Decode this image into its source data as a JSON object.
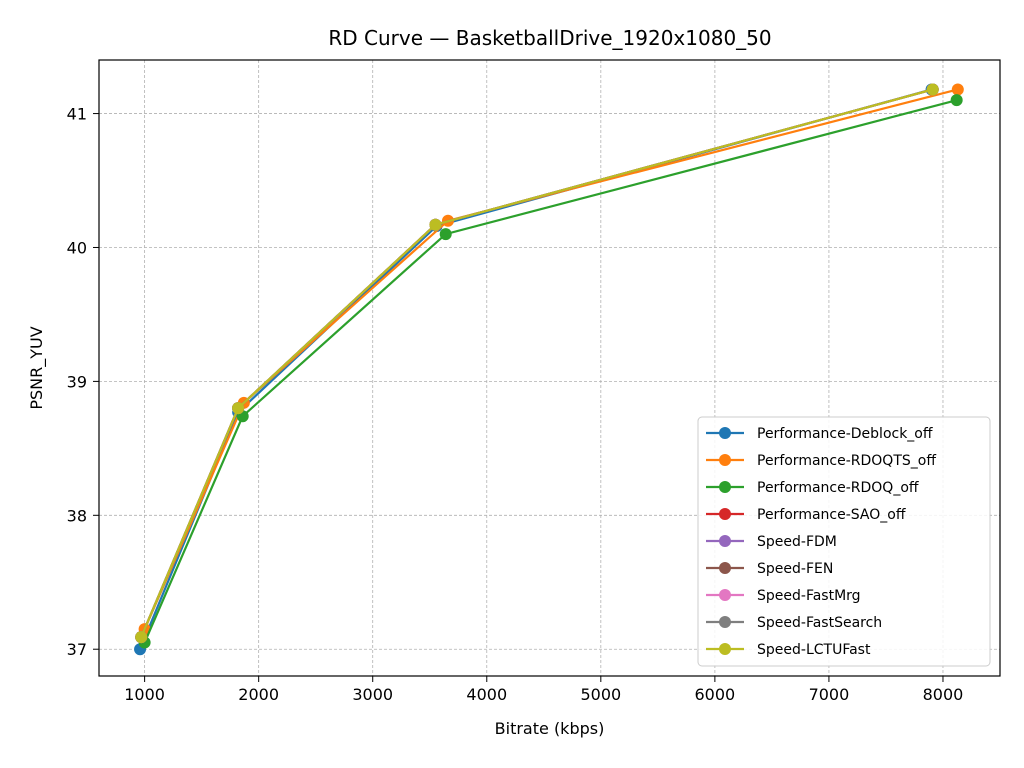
{
  "chart_data": {
    "type": "line",
    "title": "RD Curve — BasketballDrive_1920x1080_50",
    "xlabel": "Bitrate (kbps)",
    "ylabel": "PSNR_YUV",
    "xlim": [
      600,
      8500
    ],
    "ylim": [
      36.8,
      41.4
    ],
    "xticks": [
      1000,
      2000,
      3000,
      4000,
      5000,
      6000,
      7000,
      8000
    ],
    "yticks": [
      37,
      38,
      39,
      40,
      41
    ],
    "grid": true,
    "legend_position": "lower-right",
    "series": [
      {
        "name": "Performance-Deblock_off",
        "color": "#1f77b4",
        "points": [
          [
            960,
            37.0
          ],
          [
            1820,
            38.77
          ],
          [
            3560,
            40.16
          ],
          [
            7900,
            41.18
          ]
        ]
      },
      {
        "name": "Performance-RDOQTS_off",
        "color": "#ff7f0e",
        "points": [
          [
            1000,
            37.15
          ],
          [
            1870,
            38.84
          ],
          [
            3660,
            40.2
          ],
          [
            8130,
            41.18
          ]
        ]
      },
      {
        "name": "Performance-RDOQ_off",
        "color": "#2ca02c",
        "points": [
          [
            1000,
            37.05
          ],
          [
            1860,
            38.74
          ],
          [
            3640,
            40.1
          ],
          [
            8120,
            41.1
          ]
        ]
      },
      {
        "name": "Performance-SAO_off",
        "color": "#d62728",
        "points": [
          [
            970,
            37.09
          ],
          [
            1820,
            38.8
          ],
          [
            3550,
            40.17
          ],
          [
            7910,
            41.18
          ]
        ]
      },
      {
        "name": "Speed-FDM",
        "color": "#9467bd",
        "points": [
          [
            970,
            37.09
          ],
          [
            1820,
            38.8
          ],
          [
            3550,
            40.17
          ],
          [
            7910,
            41.18
          ]
        ]
      },
      {
        "name": "Speed-FEN",
        "color": "#8c564b",
        "points": [
          [
            970,
            37.09
          ],
          [
            1820,
            38.8
          ],
          [
            3550,
            40.17
          ],
          [
            7910,
            41.18
          ]
        ]
      },
      {
        "name": "Speed-FastMrg",
        "color": "#e377c2",
        "points": [
          [
            970,
            37.09
          ],
          [
            1820,
            38.8
          ],
          [
            3550,
            40.17
          ],
          [
            7910,
            41.18
          ]
        ]
      },
      {
        "name": "Speed-FastSearch",
        "color": "#7f7f7f",
        "points": [
          [
            970,
            37.09
          ],
          [
            1820,
            38.8
          ],
          [
            3550,
            40.17
          ],
          [
            7910,
            41.18
          ]
        ]
      },
      {
        "name": "Speed-LCTUFast",
        "color": "#bcbd22",
        "points": [
          [
            970,
            37.09
          ],
          [
            1820,
            38.8
          ],
          [
            3550,
            40.17
          ],
          [
            7910,
            41.18
          ]
        ]
      }
    ]
  }
}
